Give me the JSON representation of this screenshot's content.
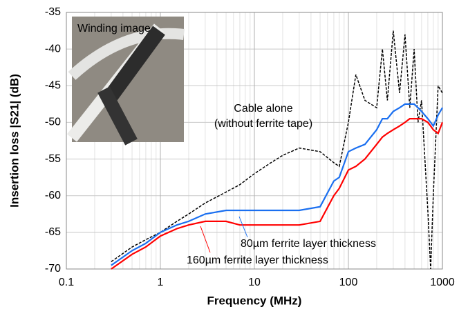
{
  "chart_data": {
    "type": "line",
    "x_label": "Frequency (MHz)",
    "y_label": "Insertion loss |S21| (dB)",
    "xscale": "log",
    "grid": true,
    "xlim": [
      0.1,
      1000
    ],
    "xticks": [
      0.1,
      1,
      10,
      100,
      1000
    ],
    "ylim": [
      -70,
      -35
    ],
    "yticks": [
      -70,
      -65,
      -60,
      -55,
      -50,
      -45,
      -40,
      -35
    ],
    "x": [
      0.3,
      0.5,
      0.7,
      1,
      1.5,
      2,
      3,
      5,
      7,
      10,
      15,
      20,
      30,
      50,
      70,
      80,
      100,
      120,
      150,
      200,
      230,
      260,
      300,
      350,
      400,
      450,
      500,
      550,
      600,
      700,
      750,
      800,
      900,
      1000
    ],
    "series": [
      {
        "name": "Cable alone",
        "color": "#000000",
        "dashed": true,
        "values": [
          -69,
          -67,
          -66,
          -65,
          -63.5,
          -62.5,
          -61,
          -59.5,
          -58.5,
          -57,
          -55.5,
          -54.5,
          -53.5,
          -54,
          -55.5,
          -56,
          -50,
          -43.5,
          -47,
          -48,
          -40,
          -47,
          -37.5,
          -46,
          -38,
          -48,
          -40,
          -50,
          -47,
          -62,
          -70,
          -60,
          -45,
          -46
        ]
      },
      {
        "name": "80µm ferrite layer thickness",
        "color": "#1a6ff0",
        "values": [
          -69.5,
          -67.5,
          -66.5,
          -65,
          -64,
          -63.5,
          -62.5,
          -62,
          -62,
          -62,
          -62,
          -62,
          -62,
          -61.5,
          -58,
          -57.5,
          -54,
          -53.5,
          -53,
          -51,
          -49.5,
          -49.5,
          -48.5,
          -48,
          -47.5,
          -47.5,
          -47.5,
          -48,
          -48.5,
          -49.5,
          -50,
          -50.5,
          -49,
          -48
        ]
      },
      {
        "name": "160µm ferrite layer thickness",
        "color": "#ff0000",
        "values": [
          -70,
          -68,
          -67,
          -65.5,
          -64.5,
          -64,
          -63.5,
          -63.5,
          -64,
          -64,
          -64,
          -64,
          -64,
          -63.5,
          -60,
          -59,
          -56.5,
          -56,
          -55,
          -53,
          -52,
          -51.5,
          -51,
          -50.5,
          -50,
          -49.5,
          -49.5,
          -49.5,
          -49.5,
          -50,
          -50.5,
          -51,
          -51.5,
          -50
        ]
      }
    ],
    "annotations": [
      "(without ferrite tape)",
      "Winding image"
    ]
  }
}
